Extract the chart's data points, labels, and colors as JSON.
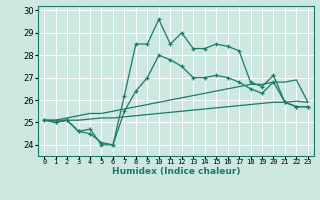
{
  "xlabel": "Humidex (Indice chaleur)",
  "bg_color": "#cce8e0",
  "grid_color": "#ffffff",
  "line_color": "#1a7a6a",
  "xlim": [
    -0.5,
    23.5
  ],
  "ylim": [
    23.5,
    30.2
  ],
  "yticks": [
    24,
    25,
    26,
    27,
    28,
    29,
    30
  ],
  "xtick_labels": [
    "0",
    "1",
    "2",
    "3",
    "4",
    "5",
    "6",
    "7",
    "8",
    "9",
    "10",
    "11",
    "12",
    "13",
    "14",
    "15",
    "16",
    "17",
    "18",
    "19",
    "20",
    "21",
    "22",
    "23"
  ],
  "series": [
    [
      25.1,
      25.0,
      25.1,
      24.6,
      24.7,
      24.0,
      24.0,
      26.2,
      28.5,
      28.5,
      29.6,
      28.5,
      29.0,
      28.3,
      28.3,
      28.5,
      28.4,
      28.2,
      26.8,
      26.6,
      27.1,
      25.9,
      25.7,
      25.7
    ],
    [
      25.1,
      25.0,
      25.1,
      24.6,
      24.5,
      24.1,
      24.0,
      25.5,
      26.4,
      27.0,
      28.0,
      27.8,
      27.5,
      27.0,
      27.0,
      27.1,
      27.0,
      26.8,
      26.5,
      26.3,
      26.8,
      25.9,
      25.7,
      25.7
    ],
    [
      25.1,
      25.1,
      25.2,
      25.3,
      25.4,
      25.4,
      25.5,
      25.6,
      25.7,
      25.8,
      25.9,
      26.0,
      26.1,
      26.2,
      26.3,
      26.4,
      26.5,
      26.6,
      26.7,
      26.7,
      26.8,
      26.8,
      26.9,
      25.9
    ],
    [
      25.1,
      25.1,
      25.1,
      25.1,
      25.15,
      25.2,
      25.2,
      25.25,
      25.3,
      25.35,
      25.4,
      25.45,
      25.5,
      25.55,
      25.6,
      25.65,
      25.7,
      25.75,
      25.8,
      25.85,
      25.9,
      25.9,
      25.95,
      25.9
    ]
  ]
}
